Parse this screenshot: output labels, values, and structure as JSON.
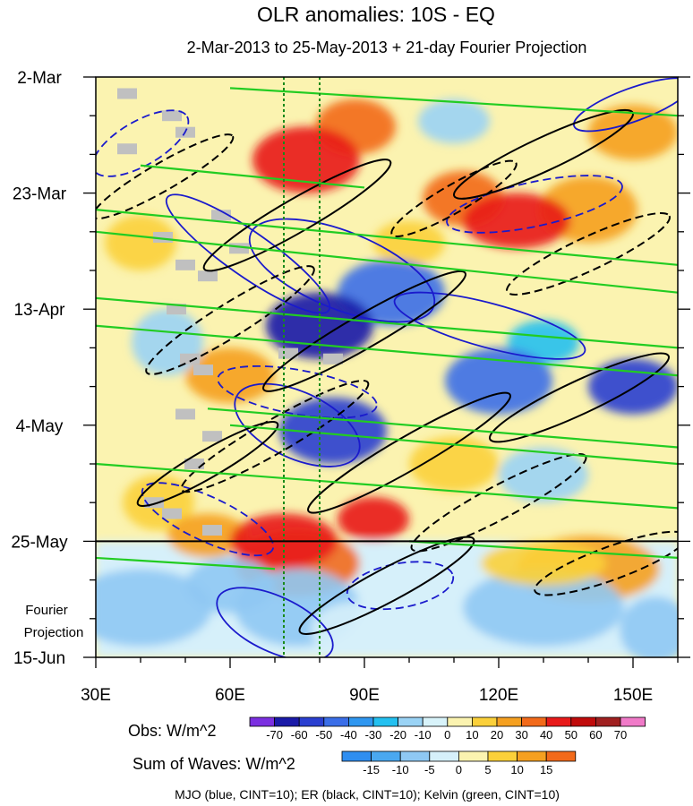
{
  "chart_data": {
    "type": "heatmap",
    "title": "OLR anomalies: 10S - EQ",
    "subtitle": "2-Mar-2013 to 25-May-2013 + 21-day Fourier Projection",
    "x_axis": {
      "range": [
        30,
        160
      ],
      "ticks": [
        30,
        60,
        90,
        120,
        150
      ],
      "tick_labels": [
        "30E",
        "60E",
        "90E",
        "120E",
        "150E"
      ]
    },
    "y_axis": {
      "range_days": [
        0,
        105
      ],
      "ticks_days": [
        0,
        21,
        42,
        63,
        84,
        105
      ],
      "tick_labels": [
        "2-Mar",
        "23-Mar",
        "13-Apr",
        "4-May",
        "25-May",
        "15-Jun"
      ],
      "direction": "time increases downward"
    },
    "projection_label": "Fourier Projection",
    "projection_start_day": 84,
    "reference_lines_lon": [
      72,
      80
    ],
    "obs_colorbar": {
      "label": "Obs: W/m^2",
      "levels": [
        -70,
        -60,
        -50,
        -40,
        -30,
        -20,
        -10,
        0,
        10,
        20,
        30,
        40,
        50,
        60,
        70
      ],
      "colors": [
        "#7b2fe0",
        "#1a1aa8",
        "#2a3fd0",
        "#3a6ee8",
        "#2f97f0",
        "#23c0f0",
        "#9ad3f5",
        "#d8f3fa",
        "#fbf3b0",
        "#fbd03a",
        "#f5a020",
        "#f26a1a",
        "#e81a1a",
        "#c00b0b",
        "#a02020",
        "#f07ac8"
      ]
    },
    "waves_colorbar": {
      "label": "Sum of Waves: W/m^2",
      "levels": [
        -15,
        -10,
        -5,
        0,
        5,
        10,
        15
      ],
      "colors": [
        "#2f8ef0",
        "#4aa8f0",
        "#8fc8f3",
        "#d6f0fa",
        "#fbf3b0",
        "#fbd03a",
        "#f5a020",
        "#f26a1a"
      ]
    },
    "wave_legend": "MJO (blue, CINT=10); ER (black, CINT=10); Kelvin (green, CINT=10)",
    "wave_colors": {
      "MJO": "#1a1acc",
      "ER": "#000000",
      "Kelvin": "#22cc22"
    },
    "anomaly_blobs": [
      {
        "lon": 77,
        "day": 15,
        "rlon": 12,
        "rday": 6,
        "value": 45
      },
      {
        "lon": 88,
        "day": 9,
        "rlon": 9,
        "rday": 5,
        "value": 35
      },
      {
        "lon": 124,
        "day": 26,
        "rlon": 12,
        "rday": 5,
        "value": 48
      },
      {
        "lon": 112,
        "day": 22,
        "rlon": 9,
        "rday": 5,
        "value": 32
      },
      {
        "lon": 140,
        "day": 24,
        "rlon": 11,
        "rday": 6,
        "value": 25
      },
      {
        "lon": 96,
        "day": 39,
        "rlon": 12,
        "rday": 6,
        "value": -45
      },
      {
        "lon": 80,
        "day": 45,
        "rlon": 12,
        "rday": 6,
        "value": -70
      },
      {
        "lon": 120,
        "day": 55,
        "rlon": 12,
        "rday": 6,
        "value": -42
      },
      {
        "lon": 130,
        "day": 48,
        "rlon": 8,
        "rday": 4,
        "value": -28
      },
      {
        "lon": 83,
        "day": 64,
        "rlon": 12,
        "rday": 6,
        "value": -55
      },
      {
        "lon": 92,
        "day": 80,
        "rlon": 8,
        "rday": 4,
        "value": 45
      },
      {
        "lon": 72,
        "day": 84,
        "rlon": 12,
        "rday": 5,
        "value": 42
      },
      {
        "lon": 75,
        "day": 88,
        "rlon": 14,
        "rday": 6,
        "value": 32
      },
      {
        "lon": 150,
        "day": 56,
        "rlon": 10,
        "rday": 5,
        "value": -55
      },
      {
        "lon": 140,
        "day": 89,
        "rlon": 16,
        "rday": 6,
        "value": 22
      },
      {
        "lon": 55,
        "day": 83,
        "rlon": 9,
        "rday": 4,
        "value": 24
      },
      {
        "lon": 44,
        "day": 77,
        "rlon": 8,
        "rday": 5,
        "value": 18
      },
      {
        "lon": 110,
        "day": 70,
        "rlon": 10,
        "rday": 5,
        "value": 15
      },
      {
        "lon": 60,
        "day": 54,
        "rlon": 10,
        "rday": 5,
        "value": 20
      },
      {
        "lon": 100,
        "day": 30,
        "rlon": 8,
        "rday": 4,
        "value": 12
      },
      {
        "lon": 40,
        "day": 30,
        "rlon": 8,
        "rday": 5,
        "value": 14
      },
      {
        "lon": 150,
        "day": 10,
        "rlon": 10,
        "rday": 5,
        "value": 20
      },
      {
        "lon": 110,
        "day": 8,
        "rlon": 8,
        "rday": 4,
        "value": -15
      },
      {
        "lon": 46,
        "day": 48,
        "rlon": 8,
        "rday": 6,
        "value": -20
      },
      {
        "lon": 130,
        "day": 72,
        "rlon": 10,
        "rday": 5,
        "value": -18
      }
    ],
    "projection_blobs": [
      {
        "lon": 75,
        "day": 96,
        "rlon": 14,
        "rday": 7,
        "value": -9
      },
      {
        "lon": 60,
        "day": 92,
        "rlon": 10,
        "rday": 5,
        "value": -6
      },
      {
        "lon": 40,
        "day": 96,
        "rlon": 16,
        "rday": 7,
        "value": -6
      },
      {
        "lon": 88,
        "day": 100,
        "rlon": 10,
        "rday": 5,
        "value": -5
      },
      {
        "lon": 130,
        "day": 96,
        "rlon": 18,
        "rday": 7,
        "value": -6
      },
      {
        "lon": 155,
        "day": 100,
        "rlon": 8,
        "rday": 6,
        "value": -6
      },
      {
        "lon": 130,
        "day": 88,
        "rlon": 14,
        "rday": 4,
        "value": 7
      }
    ],
    "missing_cells": [
      {
        "lon": 37,
        "day": 3
      },
      {
        "lon": 47,
        "day": 7
      },
      {
        "lon": 50,
        "day": 10
      },
      {
        "lon": 37,
        "day": 13
      },
      {
        "lon": 58,
        "day": 25
      },
      {
        "lon": 45,
        "day": 29
      },
      {
        "lon": 62,
        "day": 31
      },
      {
        "lon": 50,
        "day": 34
      },
      {
        "lon": 55,
        "day": 36
      },
      {
        "lon": 48,
        "day": 42
      },
      {
        "lon": 73,
        "day": 50
      },
      {
        "lon": 83,
        "day": 51
      },
      {
        "lon": 51,
        "day": 51
      },
      {
        "lon": 54,
        "day": 53
      },
      {
        "lon": 50,
        "day": 61
      },
      {
        "lon": 56,
        "day": 65
      },
      {
        "lon": 52,
        "day": 70
      },
      {
        "lon": 43,
        "day": 77
      },
      {
        "lon": 47,
        "day": 79
      },
      {
        "lon": 56,
        "day": 82
      }
    ],
    "mjo_contours": [
      {
        "lon": 40,
        "day": 12,
        "rlon": 12,
        "rday": 4,
        "angle": -30,
        "sign": "-"
      },
      {
        "lon": 64,
        "day": 32,
        "rlon": 22,
        "rday": 4,
        "angle": 35,
        "sign": "+"
      },
      {
        "lon": 85,
        "day": 35,
        "rlon": 22,
        "rday": 7,
        "angle": 22,
        "sign": "+"
      },
      {
        "lon": 118,
        "day": 45,
        "rlon": 22,
        "rday": 4,
        "angle": 15,
        "sign": "+"
      },
      {
        "lon": 75,
        "day": 57,
        "rlon": 18,
        "rday": 4,
        "angle": 10,
        "sign": "-"
      },
      {
        "lon": 75,
        "day": 63,
        "rlon": 15,
        "rday": 6,
        "angle": 25,
        "sign": "+"
      },
      {
        "lon": 55,
        "day": 80,
        "rlon": 16,
        "rday": 4,
        "angle": 25,
        "sign": "-"
      },
      {
        "lon": 70,
        "day": 99,
        "rlon": 14,
        "rday": 5,
        "angle": 25,
        "sign": "+"
      },
      {
        "lon": 98,
        "day": 92,
        "rlon": 12,
        "rday": 4,
        "angle": -10,
        "sign": "-"
      },
      {
        "lon": 128,
        "day": 23,
        "rlon": 20,
        "rday": 4,
        "angle": -12,
        "sign": "-"
      },
      {
        "lon": 150,
        "day": 5,
        "rlon": 14,
        "rday": 3,
        "angle": -20,
        "sign": "+"
      }
    ],
    "er_contours": [
      {
        "lon": 45,
        "day": 18,
        "rlon": 18,
        "rday": 2.5,
        "angle": -30,
        "sign": "-"
      },
      {
        "lon": 75,
        "day": 25,
        "rlon": 24,
        "rday": 3,
        "angle": -30,
        "sign": "+"
      },
      {
        "lon": 60,
        "day": 44,
        "rlon": 22,
        "rday": 3,
        "angle": -32,
        "sign": "-"
      },
      {
        "lon": 90,
        "day": 46,
        "rlon": 26,
        "rday": 3,
        "angle": -30,
        "sign": "+"
      },
      {
        "lon": 70,
        "day": 65,
        "rlon": 24,
        "rday": 3,
        "angle": -30,
        "sign": "-"
      },
      {
        "lon": 100,
        "day": 68,
        "rlon": 26,
        "rday": 3,
        "angle": -30,
        "sign": "+"
      },
      {
        "lon": 120,
        "day": 77,
        "rlon": 22,
        "rday": 3,
        "angle": -28,
        "sign": "-"
      },
      {
        "lon": 95,
        "day": 92,
        "rlon": 22,
        "rday": 3,
        "angle": -28,
        "sign": "+"
      },
      {
        "lon": 138,
        "day": 58,
        "rlon": 22,
        "rday": 3,
        "angle": -25,
        "sign": "+"
      },
      {
        "lon": 140,
        "day": 32,
        "rlon": 20,
        "rday": 3,
        "angle": -25,
        "sign": "-"
      },
      {
        "lon": 130,
        "day": 14,
        "rlon": 22,
        "rday": 3,
        "angle": -25,
        "sign": "+"
      },
      {
        "lon": 145,
        "day": 88,
        "rlon": 18,
        "rday": 3,
        "angle": -20,
        "sign": "-"
      },
      {
        "lon": 55,
        "day": 70,
        "rlon": 18,
        "rday": 2.5,
        "angle": -30,
        "sign": "+"
      },
      {
        "lon": 110,
        "day": 22,
        "rlon": 16,
        "rday": 2.5,
        "angle": -30,
        "sign": "-"
      }
    ],
    "kelvin_contours": [
      {
        "lon0": 30,
        "day0": 24,
        "lon1": 160,
        "day1": 34
      },
      {
        "lon0": 30,
        "day0": 28,
        "lon1": 160,
        "day1": 39
      },
      {
        "lon0": 30,
        "day0": 40,
        "lon1": 160,
        "day1": 49
      },
      {
        "lon0": 30,
        "day0": 45,
        "lon1": 160,
        "day1": 54
      },
      {
        "lon0": 55,
        "day0": 60,
        "lon1": 160,
        "day1": 67
      },
      {
        "lon0": 60,
        "day0": 63,
        "lon1": 160,
        "day1": 70
      },
      {
        "lon0": 30,
        "day0": 70,
        "lon1": 160,
        "day1": 78
      },
      {
        "lon0": 60,
        "day0": 2,
        "lon1": 160,
        "day1": 7
      },
      {
        "lon0": 40,
        "day0": 16,
        "lon1": 90,
        "day1": 20
      },
      {
        "lon0": 30,
        "day0": 87,
        "lon1": 70,
        "day1": 89
      },
      {
        "lon0": 100,
        "day0": 84,
        "lon1": 160,
        "day1": 87
      }
    ]
  }
}
